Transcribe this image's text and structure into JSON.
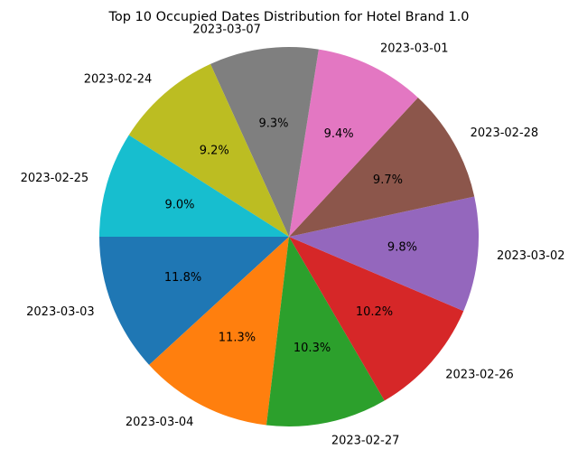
{
  "chart_data": {
    "type": "pie",
    "title": "Top 10 Occupied Dates Distribution for Hotel Brand 1.0",
    "start_angle_deg": 180,
    "direction": "counterclockwise",
    "slices": [
      {
        "label": "2023-03-03",
        "value": 11.8,
        "pct_label": "11.8%",
        "color": "#1f77b4"
      },
      {
        "label": "2023-03-04",
        "value": 11.3,
        "pct_label": "11.3%",
        "color": "#ff7f0e"
      },
      {
        "label": "2023-02-27",
        "value": 10.3,
        "pct_label": "10.3%",
        "color": "#2ca02c"
      },
      {
        "label": "2023-02-26",
        "value": 10.2,
        "pct_label": "10.2%",
        "color": "#d62728"
      },
      {
        "label": "2023-03-02",
        "value": 9.8,
        "pct_label": "9.8%",
        "color": "#9467bd"
      },
      {
        "label": "2023-02-28",
        "value": 9.7,
        "pct_label": "9.7%",
        "color": "#8c564b"
      },
      {
        "label": "2023-03-01",
        "value": 9.4,
        "pct_label": "9.4%",
        "color": "#e377c2"
      },
      {
        "label": "2023-03-07",
        "value": 9.3,
        "pct_label": "9.3%",
        "color": "#7f7f7f"
      },
      {
        "label": "2023-02-24",
        "value": 9.2,
        "pct_label": "9.2%",
        "color": "#bcbd22"
      },
      {
        "label": "2023-02-25",
        "value": 9.0,
        "pct_label": "9.0%",
        "color": "#17becf"
      }
    ]
  }
}
